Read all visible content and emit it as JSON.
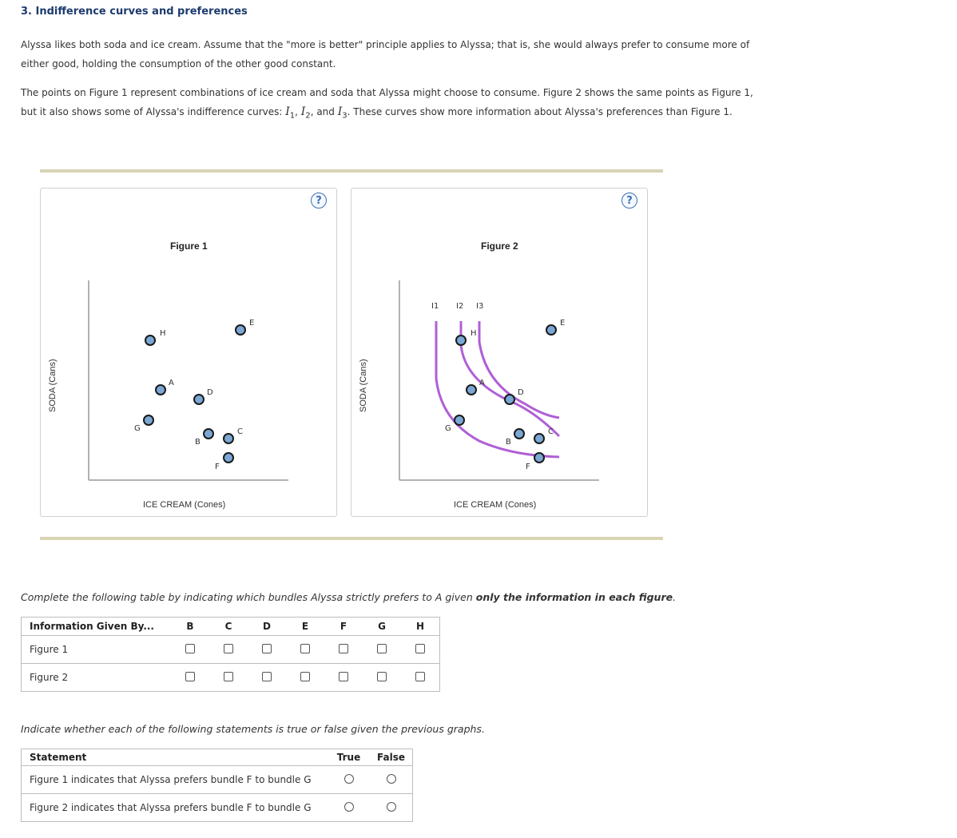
{
  "heading": "3. Indifference curves and preferences",
  "para1": "Alyssa likes both soda and ice cream. Assume that the \"more is better\" principle applies to Alyssa; that is, she would always prefer to consume more of either good, holding the consumption of the other good constant.",
  "para2_parts": {
    "before": "The points on Figure 1 represent combinations of ice cream and soda that Alyssa might choose to consume. Figure 2 shows the same points as Figure 1, but it also shows some of Alyssa's indifference curves: ",
    "i1": "I",
    "i1_sub": "1",
    "sep1": ", ",
    "i2": "I",
    "i2_sub": "2",
    "sep2": ", and ",
    "i3": "I",
    "i3_sub": "3",
    "after": ". These curves show more information about Alyssa's preferences than Figure 1."
  },
  "help_icon_text": "?",
  "figure1": {
    "title": "Figure 1",
    "ylabel": "SODA (Cans)",
    "xlabel": "ICE CREAM (Cones)"
  },
  "figure2": {
    "title": "Figure 2",
    "ylabel": "SODA (Cans)",
    "xlabel": "ICE CREAM (Cones)",
    "curve_labels": [
      "I1",
      "I2",
      "I3"
    ]
  },
  "points": [
    "H",
    "E",
    "A",
    "D",
    "G",
    "B",
    "C",
    "F"
  ],
  "colors": {
    "point_fill": "#7ba7d4",
    "point_stroke": "#1a1a1a",
    "curve": "#b05fd6",
    "rule": "#d8d4b4",
    "heading": "#1d3b6e",
    "help": "#3a6fb5"
  },
  "instruction1": {
    "before": "Complete the following table by indicating which bundles Alyssa strictly prefers to A given ",
    "bold": "only the information in each figure",
    "after": "."
  },
  "table1": {
    "header": "Information Given By...",
    "columns": [
      "B",
      "C",
      "D",
      "E",
      "F",
      "G",
      "H"
    ],
    "rows": [
      "Figure 1",
      "Figure 2"
    ]
  },
  "instruction2": "Indicate whether each of the following statements is true or false given the previous graphs.",
  "table2": {
    "header": "Statement",
    "true_label": "True",
    "false_label": "False",
    "rows": [
      "Figure 1 indicates that Alyssa prefers bundle F to bundle G",
      "Figure 2 indicates that Alyssa prefers bundle F to bundle G"
    ]
  }
}
